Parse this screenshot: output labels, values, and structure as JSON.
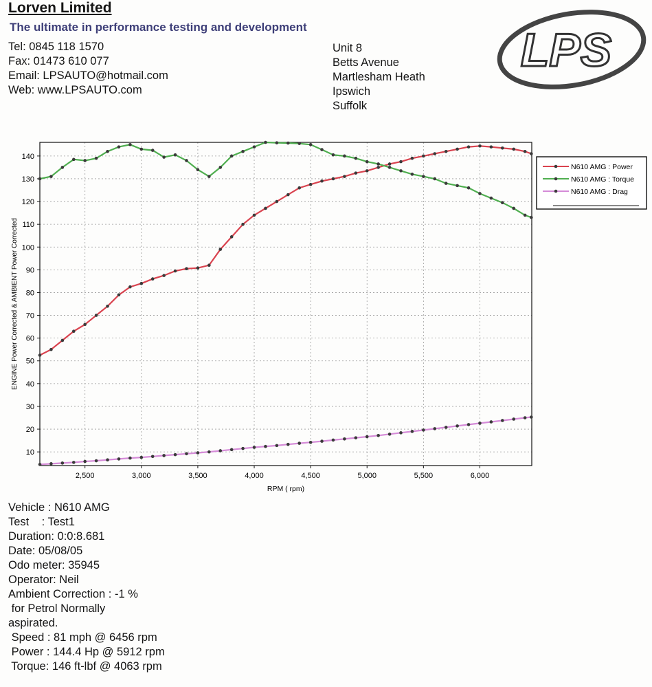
{
  "header": {
    "company": "Lorven Limited",
    "tagline": "The ultimate in performance testing and development",
    "contact": [
      "Tel: 0845 118 1570",
      "Fax: 01473 610 077",
      "Email: LPSAUTO@hotmail.com",
      "Web: www.LPSAUTO.com"
    ],
    "address": [
      "Unit 8",
      "Betts Avenue",
      "Martlesham Heath",
      "Ipswich",
      "Suffolk"
    ],
    "logo_text": "LPS"
  },
  "chart_data": {
    "type": "line",
    "xlabel": "RPM ( rpm)",
    "ylabel": "ENGINE Power Corrected & AMBIENT Power Corrected",
    "xlim": [
      2100,
      6460
    ],
    "ylim": [
      4,
      146
    ],
    "xticks": [
      2500,
      3000,
      3500,
      4000,
      4500,
      5000,
      5500,
      6000
    ],
    "xtick_labels": [
      "2,500",
      "3,000",
      "3,500",
      "4,000",
      "4,500",
      "5,000",
      "5,500",
      "6,000"
    ],
    "yticks": [
      10,
      20,
      30,
      40,
      50,
      60,
      70,
      80,
      90,
      100,
      110,
      120,
      130,
      140
    ],
    "grid": true,
    "legend_position": "right",
    "x": [
      2100,
      2200,
      2300,
      2400,
      2500,
      2600,
      2700,
      2800,
      2900,
      3000,
      3100,
      3200,
      3300,
      3400,
      3500,
      3600,
      3700,
      3800,
      3900,
      4000,
      4100,
      4200,
      4300,
      4400,
      4500,
      4600,
      4700,
      4800,
      4900,
      5000,
      5100,
      5200,
      5300,
      5400,
      5500,
      5600,
      5700,
      5800,
      5900,
      6000,
      6100,
      6200,
      6300,
      6400,
      6456
    ],
    "series": [
      {
        "name": "N610 AMG : Power",
        "color": "#d9434f",
        "values": [
          52.5,
          55,
          59,
          63,
          66,
          70,
          74,
          79,
          82.5,
          84,
          86,
          87.5,
          89.5,
          90.5,
          90.8,
          92,
          99,
          104.5,
          110,
          114,
          117,
          120,
          123,
          126,
          127.5,
          129,
          130,
          131,
          132.5,
          133.5,
          135,
          136.5,
          137.5,
          139,
          140,
          141,
          142,
          143,
          144,
          144.4,
          144,
          143.5,
          143,
          142,
          141
        ]
      },
      {
        "name": "N610 AMG : Torque",
        "color": "#4fae4f",
        "values": [
          130,
          131,
          135,
          138.5,
          138,
          139,
          142,
          144,
          145,
          143,
          142.5,
          139.5,
          140.5,
          138,
          134,
          131,
          135,
          140,
          142,
          144,
          146,
          145.8,
          145.7,
          145.5,
          145,
          142.8,
          140.5,
          140,
          139,
          137.5,
          136.5,
          135,
          133.5,
          132,
          131,
          130,
          128,
          127,
          126,
          123.5,
          121.5,
          119.5,
          117,
          114,
          113
        ]
      },
      {
        "name": "N610 AMG : Drag",
        "color": "#d58bd8",
        "values": [
          4.5,
          4.8,
          5.1,
          5.4,
          5.8,
          6.1,
          6.5,
          6.9,
          7.3,
          7.6,
          8,
          8.4,
          8.8,
          9.2,
          9.6,
          10,
          10.5,
          11,
          11.5,
          12,
          12.4,
          12.8,
          13.3,
          13.8,
          14.2,
          14.7,
          15.2,
          15.7,
          16.2,
          16.7,
          17.2,
          17.8,
          18.4,
          19,
          19.6,
          20.2,
          20.8,
          21.4,
          22,
          22.6,
          23.2,
          23.8,
          24.4,
          25,
          25.3
        ]
      }
    ]
  },
  "details": [
    "Vehicle : N610 AMG",
    "Test    : Test1",
    "Duration: 0:0:8.681",
    "Date: 05/08/05",
    "Odo meter: 35945",
    "Operator: Neil",
    "Ambient Correction : -1 %",
    " for Petrol Normally",
    "aspirated.",
    " Speed : 81 mph @ 6456 rpm",
    " Power : 144.4 Hp @ 5912 rpm",
    " Torque: 146 ft-lbf @ 4063 rpm"
  ]
}
